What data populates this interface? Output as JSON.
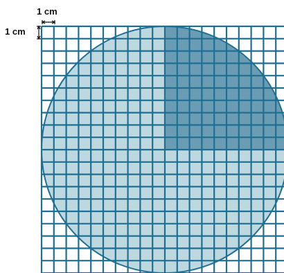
{
  "scale_labels": {
    "horizontal": "1 cm",
    "vertical": "1 cm"
  },
  "grid": {
    "columns": 20,
    "rows": 20,
    "cell_label": "1 cm",
    "line_color": "#1f6f93"
  },
  "circle": {
    "fill_color": "#bdd8df",
    "stroke_color": "#1f6f93"
  },
  "shaded_quarter": {
    "fill_color": "#6a9db4"
  }
}
